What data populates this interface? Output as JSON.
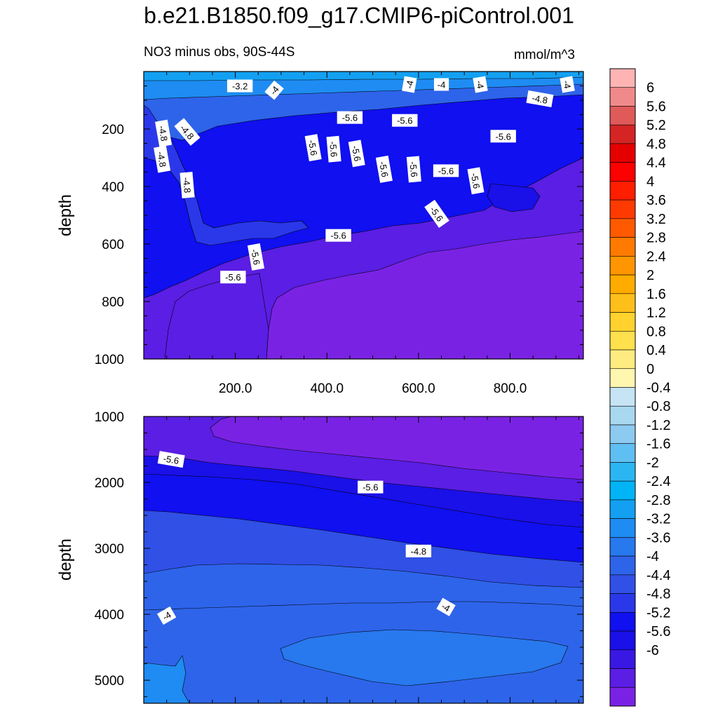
{
  "title": "b.e21.B1850.f09_g17.CMIP6-piControl.001",
  "subtitle_left": "NO3 minus obs, 90S-44S",
  "units": "mmol/m^3",
  "palette": {
    "positive": [
      "#fff6b0",
      "#ffec80",
      "#ffe04d",
      "#ffd22e",
      "#ffbf1a",
      "#ffab00",
      "#ff9500",
      "#ff7a00",
      "#ff5a00",
      "#ff3a00",
      "#ff1e00",
      "#ff0000",
      "#e50000",
      "#d42424",
      "#e05a5a",
      "#f08a8a",
      "#ffb4b4"
    ],
    "negative": [
      "#c6e4f4",
      "#a8d8f0",
      "#8ccaf0",
      "#5fbef2",
      "#2bb6f2",
      "#00b4f5",
      "#13a0f2",
      "#1e8cf2",
      "#2878ee",
      "#2e64ea",
      "#3050e6",
      "#2a38ea",
      "#1010f0",
      "#1a10e8",
      "#3a18e4",
      "#5a1ee4",
      "#7a22e4"
    ]
  },
  "chart_data": [
    {
      "type": "contour",
      "name": "upper-ocean",
      "xlabel": "",
      "ylabel": "depth",
      "xlim": [
        0,
        960
      ],
      "ylim": [
        1000,
        0
      ],
      "xticks": [
        200,
        400,
        600,
        800
      ],
      "xtick_labels": [
        "200.0",
        "400.0",
        "600.0",
        "800.0"
      ],
      "yticks": [
        200,
        400,
        600,
        800,
        1000
      ],
      "ytick_labels": [
        "200",
        "400",
        "600",
        "800",
        "1000"
      ],
      "contour_labels": [
        {
          "text": "-3.2",
          "x": 210,
          "y": 50,
          "angle": 0
        },
        {
          "text": "-4",
          "x": 285,
          "y": 65,
          "angle": -50
        },
        {
          "text": "-4",
          "x": 580,
          "y": 45,
          "angle": -80
        },
        {
          "text": "-4",
          "x": 650,
          "y": 45,
          "angle": 0
        },
        {
          "text": "-4",
          "x": 735,
          "y": 45,
          "angle": 80
        },
        {
          "text": "-4",
          "x": 925,
          "y": 45,
          "angle": 80
        },
        {
          "text": "-4.8",
          "x": 43,
          "y": 215,
          "angle": 80
        },
        {
          "text": "-4.8",
          "x": 95,
          "y": 210,
          "angle": 50
        },
        {
          "text": "-4.8",
          "x": 865,
          "y": 95,
          "angle": 10
        },
        {
          "text": "-4.8",
          "x": 40,
          "y": 305,
          "angle": 80
        },
        {
          "text": "-4.8",
          "x": 95,
          "y": 395,
          "angle": 85
        },
        {
          "text": "-5.6",
          "x": 450,
          "y": 160,
          "angle": 0
        },
        {
          "text": "-5.6",
          "x": 570,
          "y": 170,
          "angle": 0
        },
        {
          "text": "-5.6",
          "x": 785,
          "y": 225,
          "angle": 0
        },
        {
          "text": "-5.6",
          "x": 370,
          "y": 265,
          "angle": 80
        },
        {
          "text": "-5.6",
          "x": 415,
          "y": 270,
          "angle": 85
        },
        {
          "text": "-5.6",
          "x": 465,
          "y": 285,
          "angle": 80
        },
        {
          "text": "-5.6",
          "x": 525,
          "y": 340,
          "angle": 80
        },
        {
          "text": "-5.6",
          "x": 590,
          "y": 340,
          "angle": 85
        },
        {
          "text": "-5.6",
          "x": 660,
          "y": 345,
          "angle": 0
        },
        {
          "text": "-5.6",
          "x": 725,
          "y": 380,
          "angle": 80
        },
        {
          "text": "-5.6",
          "x": 640,
          "y": 495,
          "angle": 55
        },
        {
          "text": "-5.6",
          "x": 425,
          "y": 570,
          "angle": 0
        },
        {
          "text": "-5.6",
          "x": 245,
          "y": 645,
          "angle": 80
        },
        {
          "text": "-5.6",
          "x": 195,
          "y": 715,
          "angle": 0
        }
      ]
    },
    {
      "type": "contour",
      "name": "deep-ocean",
      "xlabel": "",
      "ylabel": "depth",
      "xlim": [
        0,
        960
      ],
      "ylim": [
        5350,
        1000
      ],
      "yticks": [
        1000,
        2000,
        3000,
        4000,
        5000
      ],
      "ytick_labels": [
        "1000",
        "2000",
        "3000",
        "4000",
        "5000"
      ],
      "contour_labels": [
        {
          "text": "-5.6",
          "x": 60,
          "y": 1650,
          "angle": 10
        },
        {
          "text": "-5.6",
          "x": 495,
          "y": 2070,
          "angle": 0
        },
        {
          "text": "-4.8",
          "x": 600,
          "y": 3040,
          "angle": 0
        },
        {
          "text": "-4",
          "x": 50,
          "y": 4020,
          "angle": -30
        },
        {
          "text": "-4",
          "x": 660,
          "y": 3890,
          "angle": 30
        }
      ]
    }
  ],
  "colorbar": {
    "labels": [
      "6",
      "5.6",
      "5.2",
      "4.8",
      "4.4",
      "4",
      "3.6",
      "3.2",
      "2.8",
      "2.4",
      "2",
      "1.6",
      "1.2",
      "0.8",
      "0.4",
      "0",
      "-0.4",
      "-0.8",
      "-1.2",
      "-1.6",
      "-2",
      "-2.4",
      "-2.8",
      "-3.2",
      "-3.6",
      "-4",
      "-4.4",
      "-4.8",
      "-5.2",
      "-5.6",
      "-6"
    ]
  }
}
